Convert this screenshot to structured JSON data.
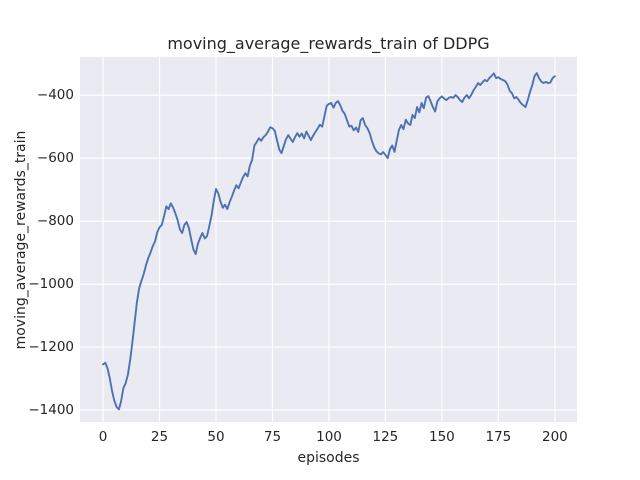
{
  "chart_data": {
    "type": "line",
    "title": "moving_average_rewards_train of DDPG",
    "xlabel": "episodes",
    "ylabel": "moving_average_rewards_train",
    "x_ticks": [
      0,
      25,
      50,
      75,
      100,
      125,
      150,
      175,
      200
    ],
    "y_ticks": [
      -1400,
      -1200,
      -1000,
      -800,
      -600,
      -400
    ],
    "xlim": [
      -10.2,
      209.8
    ],
    "ylim": [
      -1438,
      -279
    ],
    "grid": true,
    "legend": false,
    "colors": {
      "plot_background": "#EAEAF2",
      "gridline": "#FFFFFF",
      "line": "#4C72B0",
      "text": "#262626",
      "figure_background": "#FFFFFF"
    },
    "series": [
      {
        "name": "moving_average_rewards_train",
        "points": [
          [
            0,
            -1255
          ],
          [
            1,
            -1250
          ],
          [
            2,
            -1268
          ],
          [
            3,
            -1300
          ],
          [
            4,
            -1340
          ],
          [
            5,
            -1370
          ],
          [
            6,
            -1390
          ],
          [
            7,
            -1398
          ],
          [
            8,
            -1372
          ],
          [
            9,
            -1330
          ],
          [
            10,
            -1315
          ],
          [
            11,
            -1288
          ],
          [
            12,
            -1240
          ],
          [
            13,
            -1185
          ],
          [
            14,
            -1120
          ],
          [
            15,
            -1058
          ],
          [
            16,
            -1013
          ],
          [
            17,
            -990
          ],
          [
            18,
            -968
          ],
          [
            19,
            -940
          ],
          [
            20,
            -918
          ],
          [
            21,
            -900
          ],
          [
            22,
            -880
          ],
          [
            23,
            -865
          ],
          [
            24,
            -835
          ],
          [
            25,
            -820
          ],
          [
            26,
            -812
          ],
          [
            27,
            -785
          ],
          [
            28,
            -753
          ],
          [
            29,
            -762
          ],
          [
            30,
            -744
          ],
          [
            31,
            -757
          ],
          [
            32,
            -775
          ],
          [
            33,
            -797
          ],
          [
            34,
            -826
          ],
          [
            35,
            -838
          ],
          [
            36,
            -812
          ],
          [
            37,
            -803
          ],
          [
            38,
            -822
          ],
          [
            39,
            -857
          ],
          [
            40,
            -890
          ],
          [
            41,
            -905
          ],
          [
            42,
            -872
          ],
          [
            43,
            -853
          ],
          [
            44,
            -838
          ],
          [
            45,
            -855
          ],
          [
            46,
            -848
          ],
          [
            47,
            -818
          ],
          [
            48,
            -783
          ],
          [
            49,
            -738
          ],
          [
            50,
            -698
          ],
          [
            51,
            -712
          ],
          [
            52,
            -738
          ],
          [
            53,
            -758
          ],
          [
            54,
            -748
          ],
          [
            55,
            -762
          ],
          [
            56,
            -740
          ],
          [
            57,
            -723
          ],
          [
            58,
            -703
          ],
          [
            59,
            -686
          ],
          [
            60,
            -696
          ],
          [
            61,
            -678
          ],
          [
            62,
            -660
          ],
          [
            63,
            -648
          ],
          [
            64,
            -658
          ],
          [
            65,
            -624
          ],
          [
            66,
            -606
          ],
          [
            67,
            -560
          ],
          [
            68,
            -549
          ],
          [
            69,
            -537
          ],
          [
            70,
            -545
          ],
          [
            71,
            -534
          ],
          [
            72,
            -527
          ],
          [
            73,
            -516
          ],
          [
            74,
            -502
          ],
          [
            75,
            -505
          ],
          [
            76,
            -513
          ],
          [
            77,
            -543
          ],
          [
            78,
            -573
          ],
          [
            79,
            -584
          ],
          [
            80,
            -562
          ],
          [
            81,
            -540
          ],
          [
            82,
            -527
          ],
          [
            83,
            -538
          ],
          [
            84,
            -549
          ],
          [
            85,
            -533
          ],
          [
            86,
            -521
          ],
          [
            87,
            -532
          ],
          [
            88,
            -522
          ],
          [
            89,
            -537
          ],
          [
            90,
            -516
          ],
          [
            91,
            -529
          ],
          [
            92,
            -543
          ],
          [
            93,
            -529
          ],
          [
            94,
            -517
          ],
          [
            95,
            -506
          ],
          [
            96,
            -494
          ],
          [
            97,
            -500
          ],
          [
            98,
            -468
          ],
          [
            99,
            -434
          ],
          [
            100,
            -428
          ],
          [
            101,
            -425
          ],
          [
            102,
            -440
          ],
          [
            103,
            -425
          ],
          [
            104,
            -419
          ],
          [
            105,
            -432
          ],
          [
            106,
            -450
          ],
          [
            107,
            -460
          ],
          [
            108,
            -480
          ],
          [
            109,
            -500
          ],
          [
            110,
            -497
          ],
          [
            111,
            -512
          ],
          [
            112,
            -503
          ],
          [
            113,
            -517
          ],
          [
            114,
            -480
          ],
          [
            115,
            -473
          ],
          [
            116,
            -495
          ],
          [
            117,
            -505
          ],
          [
            118,
            -520
          ],
          [
            119,
            -545
          ],
          [
            120,
            -565
          ],
          [
            121,
            -578
          ],
          [
            122,
            -585
          ],
          [
            123,
            -588
          ],
          [
            124,
            -581
          ],
          [
            125,
            -590
          ],
          [
            126,
            -600
          ],
          [
            127,
            -572
          ],
          [
            128,
            -560
          ],
          [
            129,
            -580
          ],
          [
            130,
            -545
          ],
          [
            131,
            -510
          ],
          [
            132,
            -495
          ],
          [
            133,
            -508
          ],
          [
            134,
            -478
          ],
          [
            135,
            -490
          ],
          [
            136,
            -495
          ],
          [
            137,
            -463
          ],
          [
            138,
            -473
          ],
          [
            139,
            -438
          ],
          [
            140,
            -455
          ],
          [
            141,
            -425
          ],
          [
            142,
            -442
          ],
          [
            143,
            -408
          ],
          [
            144,
            -403
          ],
          [
            145,
            -420
          ],
          [
            146,
            -438
          ],
          [
            147,
            -452
          ],
          [
            148,
            -420
          ],
          [
            149,
            -410
          ],
          [
            150,
            -404
          ],
          [
            151,
            -411
          ],
          [
            152,
            -416
          ],
          [
            153,
            -409
          ],
          [
            154,
            -406
          ],
          [
            155,
            -409
          ],
          [
            156,
            -400
          ],
          [
            157,
            -406
          ],
          [
            158,
            -416
          ],
          [
            159,
            -422
          ],
          [
            160,
            -408
          ],
          [
            161,
            -400
          ],
          [
            162,
            -410
          ],
          [
            163,
            -399
          ],
          [
            164,
            -385
          ],
          [
            165,
            -374
          ],
          [
            166,
            -362
          ],
          [
            167,
            -368
          ],
          [
            168,
            -359
          ],
          [
            169,
            -352
          ],
          [
            170,
            -356
          ],
          [
            171,
            -346
          ],
          [
            172,
            -339
          ],
          [
            173,
            -331
          ],
          [
            174,
            -346
          ],
          [
            175,
            -343
          ],
          [
            176,
            -349
          ],
          [
            177,
            -352
          ],
          [
            178,
            -356
          ],
          [
            179,
            -366
          ],
          [
            180,
            -386
          ],
          [
            181,
            -394
          ],
          [
            182,
            -410
          ],
          [
            183,
            -406
          ],
          [
            184,
            -416
          ],
          [
            185,
            -426
          ],
          [
            186,
            -432
          ],
          [
            187,
            -438
          ],
          [
            188,
            -416
          ],
          [
            189,
            -390
          ],
          [
            190,
            -368
          ],
          [
            191,
            -340
          ],
          [
            192,
            -330
          ],
          [
            193,
            -346
          ],
          [
            194,
            -357
          ],
          [
            195,
            -362
          ],
          [
            196,
            -358
          ],
          [
            197,
            -362
          ],
          [
            198,
            -360
          ],
          [
            199,
            -346
          ],
          [
            200,
            -340
          ]
        ]
      }
    ]
  }
}
